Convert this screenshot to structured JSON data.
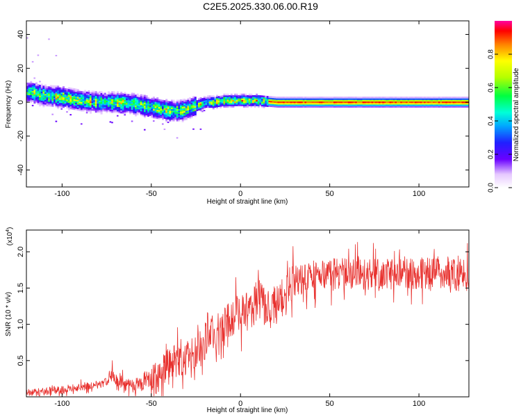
{
  "title": "C2E5.2025.330.06.00.R19",
  "chart_data": [
    {
      "type": "heatmap",
      "xlabel": "Height of straight line (km)",
      "ylabel": "Frequency (Hz)",
      "xlim": [
        -120,
        128
      ],
      "ylim": [
        -50,
        48
      ],
      "xticks": [
        -100,
        -50,
        0,
        50,
        100
      ],
      "yticks": [
        -40,
        -20,
        0,
        20,
        40
      ],
      "frequency_centerline": {
        "x": [
          -118,
          -110,
          -100,
          -90,
          -80,
          -70,
          -60,
          -50,
          -45,
          -40,
          -35,
          -30,
          -25,
          -20,
          -15,
          -10,
          -5,
          0,
          10,
          20,
          30,
          50,
          70,
          90,
          110,
          128
        ],
        "y": [
          6,
          4,
          3,
          1,
          0,
          0,
          -1,
          -3,
          -4,
          -5,
          -5,
          -4,
          -2,
          0,
          0,
          1,
          1,
          1,
          1,
          0,
          0,
          0,
          0,
          0,
          0,
          0
        ]
      },
      "colorbar": {
        "label": "Normalized spectral amplitude",
        "range": [
          0,
          1
        ],
        "ticks": [
          "0.0",
          "0.2",
          "0.4",
          "0.6",
          "0.8"
        ]
      }
    },
    {
      "type": "line",
      "xlabel": "Height of straight line (km)",
      "ylabel": "SNR (10 * v/v)",
      "y_scale_label": "(x10^4)",
      "y_scale_base": "(x10",
      "y_scale_exp": "4",
      "y_scale_close": ")",
      "xlim": [
        -120,
        128
      ],
      "ylim": [
        0,
        2.3
      ],
      "xticks": [
        -100,
        -50,
        0,
        50,
        100
      ],
      "yticks": [
        "0.5",
        "1.0",
        "1.5",
        "2.0"
      ],
      "color": "#e8312e",
      "series": [
        {
          "name": "SNR",
          "x": [
            -120,
            -110,
            -100,
            -90,
            -80,
            -75,
            -72,
            -70,
            -65,
            -60,
            -55,
            -50,
            -45,
            -40,
            -35,
            -30,
            -25,
            -20,
            -18,
            -15,
            -10,
            -5,
            0,
            5,
            10,
            15,
            20,
            25,
            30,
            40,
            50,
            60,
            70,
            80,
            90,
            100,
            110,
            120,
            128
          ],
          "values": [
            0.05,
            0.07,
            0.1,
            0.13,
            0.17,
            0.2,
            0.35,
            0.25,
            0.17,
            0.15,
            0.17,
            0.24,
            0.33,
            0.45,
            0.5,
            0.55,
            0.6,
            0.75,
            0.95,
            0.8,
            0.95,
            1.1,
            1.15,
            1.2,
            1.35,
            1.2,
            1.25,
            1.45,
            1.6,
            1.65,
            1.7,
            1.7,
            1.68,
            1.68,
            1.72,
            1.7,
            1.72,
            1.68,
            1.68
          ]
        }
      ],
      "noise_amplitude": [
        {
          "x_from": -120,
          "x_to": -75,
          "amp": 0.07
        },
        {
          "x_from": -75,
          "x_to": -50,
          "amp": 0.12
        },
        {
          "x_from": -50,
          "x_to": -20,
          "amp": 0.3
        },
        {
          "x_from": -20,
          "x_to": 30,
          "amp": 0.35
        },
        {
          "x_from": 30,
          "x_to": 128,
          "amp": 0.28
        }
      ]
    }
  ]
}
